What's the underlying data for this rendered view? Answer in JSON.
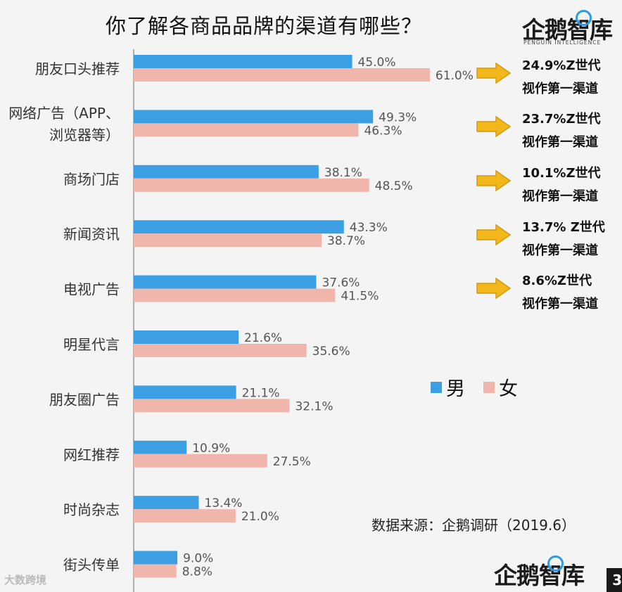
{
  "title": "你了解各商品品牌的渠道有哪些？",
  "logo": {
    "name": "企鹅智库",
    "tagline": "PENGUIN INTELLIGENCE"
  },
  "source": "数据来源：企鹅调研（2019.6）",
  "watermark": "大数跨境",
  "page_number": "3",
  "colors": {
    "male": "#3d9fe3",
    "female": "#f1b6ab",
    "arrow": "#f2b81b",
    "arrow_border": "#d09a12",
    "axis": "#999999"
  },
  "legend": [
    {
      "label": "男",
      "color": "#3d9fe3"
    },
    {
      "label": "女",
      "color": "#f1b6ab"
    }
  ],
  "notes": [
    {
      "line1": "24.9%Z世代",
      "line2": "视作第一渠道"
    },
    {
      "line1": "23.7%Z世代",
      "line2": "视作第一渠道"
    },
    {
      "line1": "10.1%Z世代",
      "line2": "视作第一渠道"
    },
    {
      "line1": "13.7% Z世代",
      "line2": "视作第一渠道"
    },
    {
      "line1": "8.6%Z世代",
      "line2": "视作第一渠道"
    }
  ],
  "chart_data": {
    "type": "bar",
    "orientation": "horizontal",
    "title": "你了解各商品品牌的渠道有哪些？",
    "categories": [
      [
        "朋友口头推荐"
      ],
      [
        "网络广告（APP、",
        "浏览器等）"
      ],
      [
        "商场门店"
      ],
      [
        "新闻资讯"
      ],
      [
        "电视广告"
      ],
      [
        "明星代言"
      ],
      [
        "朋友圈广告"
      ],
      [
        "网红推荐"
      ],
      [
        "时尚杂志"
      ],
      [
        "街头传单"
      ]
    ],
    "series": [
      {
        "name": "男",
        "values": [
          45.0,
          49.3,
          38.1,
          43.3,
          37.6,
          21.6,
          21.1,
          10.9,
          13.4,
          9.0
        ],
        "labels": [
          "45.0%",
          "49.3%",
          "38.1%",
          "43.3%",
          "37.6%",
          "21.6%",
          "21.1%",
          "10.9%",
          "13.4%",
          "9.0%"
        ]
      },
      {
        "name": "女",
        "values": [
          61.0,
          46.3,
          48.5,
          38.7,
          41.5,
          35.6,
          32.1,
          27.5,
          21.0,
          8.8
        ],
        "labels": [
          "61.0%",
          "46.3%",
          "48.5%",
          "38.7%",
          "41.5%",
          "35.6%",
          "32.1%",
          "27.5%",
          "21.0%",
          "8.8%"
        ]
      }
    ],
    "unit": "%",
    "xlim": [
      0,
      70
    ],
    "legend_position": "right",
    "grid": false
  }
}
